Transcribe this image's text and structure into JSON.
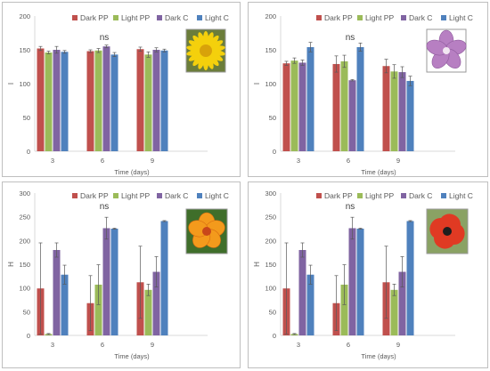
{
  "colors": {
    "Dark PP": "#c0504d",
    "Light PP": "#9bbb59",
    "Dark C": "#8064a2",
    "Light C": "#4f81bd",
    "axis": "#d9d9d9",
    "error": "#595959"
  },
  "icons": [
    "yellow-daisy-flower-photo",
    "pink-mallow-flower-photo",
    "orange-nasturtium-flower-photo",
    "red-poppy-flower-photo"
  ],
  "chart_data": [
    {
      "type": "bar",
      "ylabel": "I",
      "xlabel": "Time (days)",
      "ylim": [
        0,
        200
      ],
      "yticks": [
        0,
        50,
        100,
        150,
        200
      ],
      "grid": false,
      "legend": "top",
      "categories": [
        "3",
        "6",
        "9"
      ],
      "annotation": "ns",
      "series": [
        {
          "name": "Dark PP",
          "values": [
            152,
            148,
            151
          ],
          "err": [
            3,
            2,
            3
          ]
        },
        {
          "name": "Light PP",
          "values": [
            146,
            149,
            143
          ],
          "err": [
            2,
            3,
            4
          ]
        },
        {
          "name": "Dark C",
          "values": [
            150,
            155,
            150
          ],
          "err": [
            5,
            2,
            3
          ]
        },
        {
          "name": "Light C",
          "values": [
            147,
            143,
            149
          ],
          "err": [
            2,
            3,
            2
          ]
        }
      ]
    },
    {
      "type": "bar",
      "ylabel": "I",
      "xlabel": "Time (days)",
      "ylim": [
        0,
        200
      ],
      "yticks": [
        0,
        50,
        100,
        150,
        200
      ],
      "grid": false,
      "legend": "top",
      "categories": [
        "3",
        "6",
        "9"
      ],
      "annotation": "ns",
      "series": [
        {
          "name": "Dark PP",
          "values": [
            130,
            129,
            126
          ],
          "err": [
            3,
            12,
            10
          ]
        },
        {
          "name": "Light PP",
          "values": [
            134,
            133,
            118
          ],
          "err": [
            4,
            9,
            10
          ]
        },
        {
          "name": "Dark C",
          "values": [
            131,
            105,
            117
          ],
          "err": [
            4,
            1,
            8
          ]
        },
        {
          "name": "Light C",
          "values": [
            154,
            154,
            104
          ],
          "err": [
            7,
            6,
            7
          ]
        }
      ]
    },
    {
      "type": "bar",
      "ylabel": "H",
      "xlabel": "Time (days)",
      "ylim": [
        0,
        300
      ],
      "yticks": [
        0,
        50,
        100,
        150,
        200,
        250,
        300
      ],
      "grid": false,
      "legend": "top",
      "categories": [
        "3",
        "6",
        "9"
      ],
      "annotation": "ns",
      "series": [
        {
          "name": "Dark PP",
          "values": [
            99,
            68,
            112
          ],
          "err": [
            96,
            58,
            76
          ]
        },
        {
          "name": "Light PP",
          "values": [
            3,
            107,
            96
          ],
          "err": [
            1,
            42,
            12
          ]
        },
        {
          "name": "Dark C",
          "values": [
            180,
            226,
            134
          ],
          "err": [
            15,
            23,
            32
          ]
        },
        {
          "name": "Light C",
          "values": [
            128,
            225,
            241
          ],
          "err": [
            20,
            1,
            1
          ]
        }
      ]
    },
    {
      "type": "bar",
      "ylabel": "H",
      "xlabel": "Time (days)",
      "ylim": [
        0,
        300
      ],
      "yticks": [
        0,
        50,
        100,
        150,
        200,
        250,
        300
      ],
      "grid": false,
      "legend": "top",
      "categories": [
        "3",
        "6",
        "9"
      ],
      "annotation": "ns",
      "series": [
        {
          "name": "Dark PP",
          "values": [
            99,
            68,
            112
          ],
          "err": [
            96,
            58,
            76
          ]
        },
        {
          "name": "Light PP",
          "values": [
            3,
            107,
            96
          ],
          "err": [
            1,
            42,
            12
          ]
        },
        {
          "name": "Dark C",
          "values": [
            180,
            226,
            134
          ],
          "err": [
            15,
            23,
            32
          ]
        },
        {
          "name": "Light C",
          "values": [
            128,
            225,
            241
          ],
          "err": [
            20,
            1,
            1
          ]
        }
      ]
    }
  ]
}
